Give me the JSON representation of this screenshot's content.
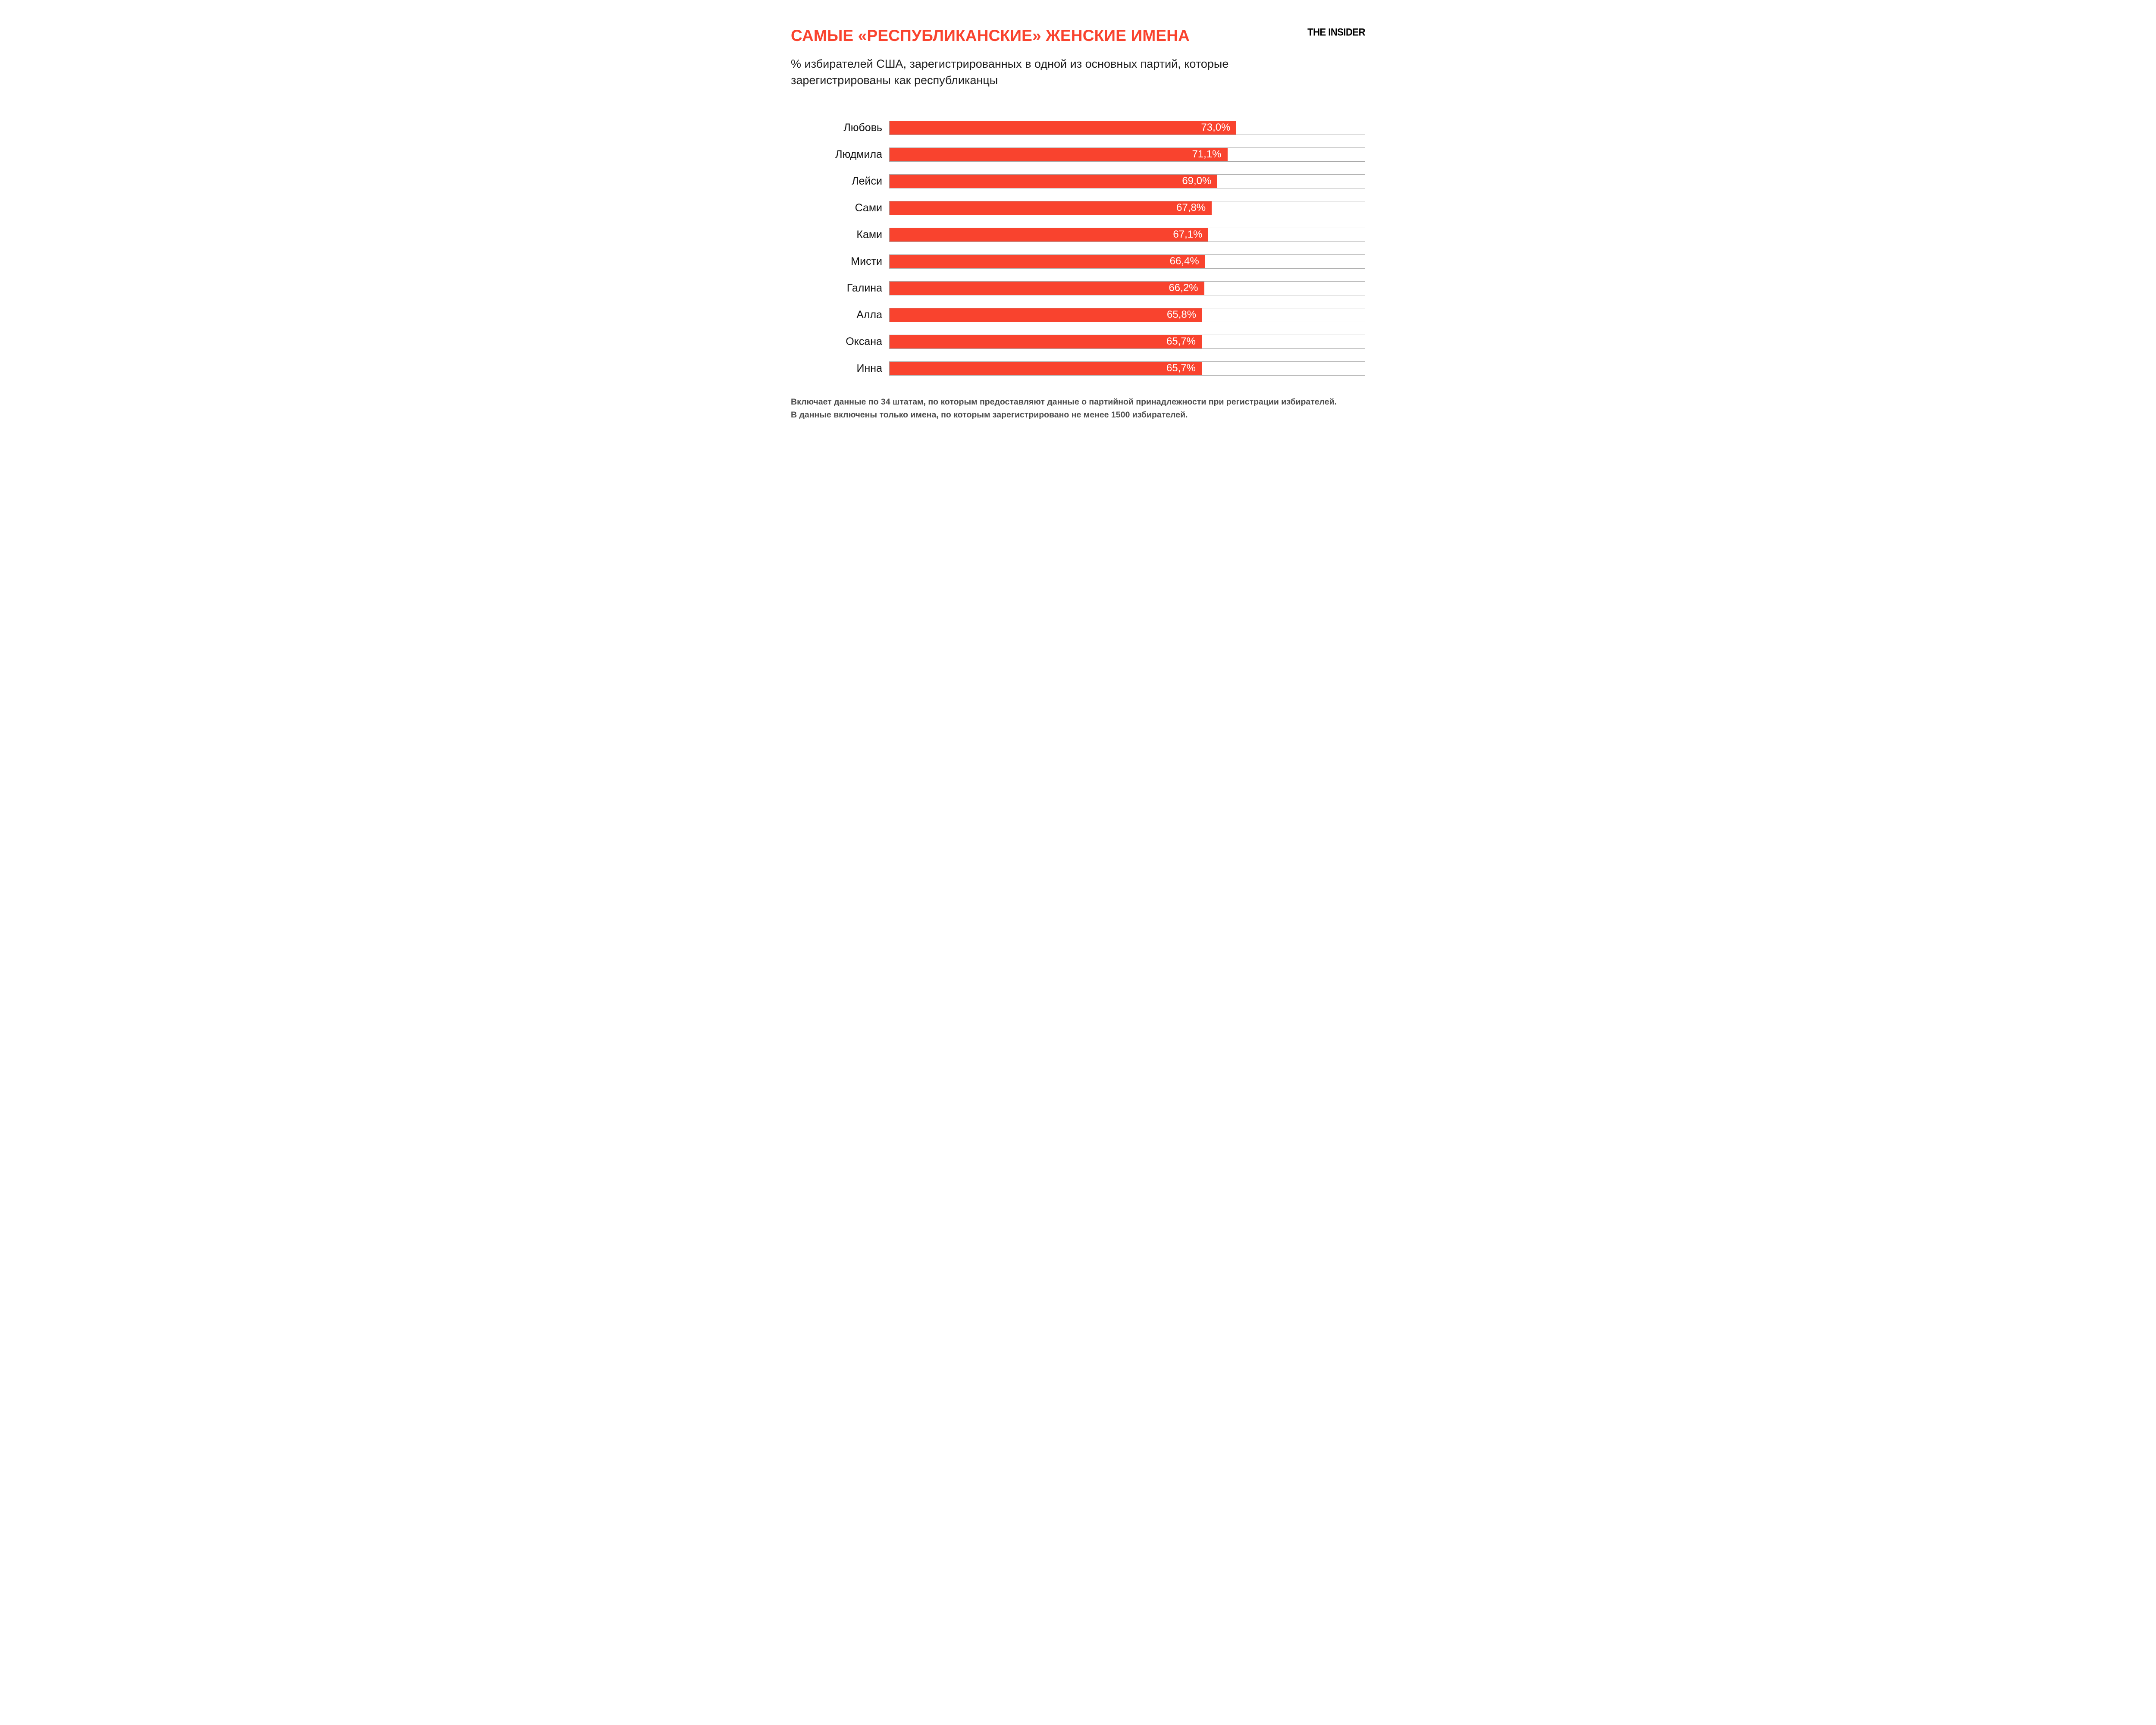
{
  "header": {
    "title": "САМЫЕ «РЕСПУБЛИКАНСКИЕ» ЖЕНСКИЕ ИМЕНА",
    "subtitle": "% избирателей США, зарегистрированных в одной из основных партий, которые зарегистрированы как республиканцы",
    "logo": "THE INSIDER"
  },
  "chart_data": {
    "type": "bar",
    "orientation": "horizontal",
    "title": "САМЫЕ «РЕСПУБЛИКАНСКИЕ» ЖЕНСКИЕ ИМЕНА",
    "subtitle": "% избирателей США, зарегистрированных в одной из основных партий, которые зарегистрированы как республиканцы",
    "xlim": [
      0,
      100
    ],
    "bar_color": "#f9432e",
    "track_border_color": "#a8a8a8",
    "value_label_color": "#ffffff",
    "categories": [
      "Любовь",
      "Людмила",
      "Лейси",
      "Сами",
      "Ками",
      "Мисти",
      "Галина",
      "Алла",
      "Оксана",
      "Инна"
    ],
    "values": [
      73.0,
      71.1,
      69.0,
      67.8,
      67.1,
      66.4,
      66.2,
      65.8,
      65.7,
      65.7
    ],
    "value_labels": [
      "73,0%",
      "71,1%",
      "69,0%",
      "67,8%",
      "67,1%",
      "66,4%",
      "66,2%",
      "65,8%",
      "65,7%",
      "65,7%"
    ],
    "rows": [
      {
        "name": "Любовь",
        "value": 73.0,
        "label": "73,0%"
      },
      {
        "name": "Людмила",
        "value": 71.1,
        "label": "71,1%"
      },
      {
        "name": "Лейси",
        "value": 69.0,
        "label": "69,0%"
      },
      {
        "name": "Сами",
        "value": 67.8,
        "label": "67,8%"
      },
      {
        "name": "Ками",
        "value": 67.1,
        "label": "67,1%"
      },
      {
        "name": "Мисти",
        "value": 66.4,
        "label": "66,4%"
      },
      {
        "name": "Галина",
        "value": 66.2,
        "label": "66,2%"
      },
      {
        "name": "Алла",
        "value": 65.8,
        "label": "65,8%"
      },
      {
        "name": "Оксана",
        "value": 65.7,
        "label": "65,7%"
      },
      {
        "name": "Инна",
        "value": 65.7,
        "label": "65,7%"
      }
    ]
  },
  "footnote": {
    "line1": "Включает данные по 34 штатам, по которым предоставляют данные о партийной принадлежности при регистрации избирателей.",
    "line2": "В данные включены только имена, по которым зарегистрировано не менее 1500 избирателей."
  }
}
